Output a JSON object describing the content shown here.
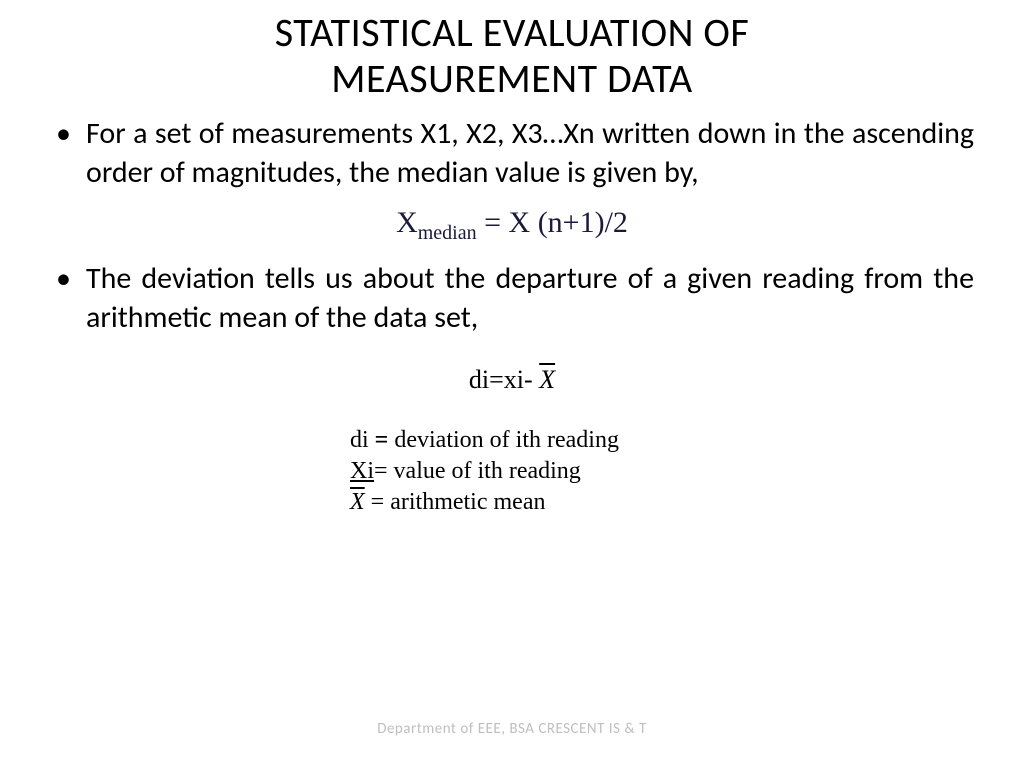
{
  "title_line1": "STATISTICAL EVALUATION OF",
  "title_line2": "MEASUREMENT DATA",
  "bullet1": "For a set of measurements X1, X2, X3…Xn written down in the ascending order of magnitudes, the median value is given by,",
  "formula_median_left": "X",
  "formula_median_sub": "median",
  "formula_median_right": " = X (n+1)/2",
  "bullet2": "The deviation tells us about the departure of a given reading from the arithmetic mean of the data set,",
  "formula_dev_left": "di=xi- ",
  "formula_dev_xbar": "X",
  "legend": {
    "l1_a": "di ",
    "l1_b": "= ",
    "l1_c": "deviation of ith reading",
    "l2_a": "Xi",
    "l2_b": "= value of ith reading",
    "l3_x": "X",
    "l3_b": " = arithmetic mean"
  },
  "watermark": "Department of EEE, BSA CRESCENT IS & T",
  "colors": {
    "background": "#ffffff",
    "text": "#000000",
    "formula_tint": "#1a1a3a",
    "watermark": "#bfbfbf"
  },
  "fonts": {
    "body": "Calibri",
    "formula": "Times New Roman",
    "title_size_pt": 40,
    "body_size_pt": 30,
    "formula_size_pt": 30,
    "legend_size_pt": 24
  }
}
